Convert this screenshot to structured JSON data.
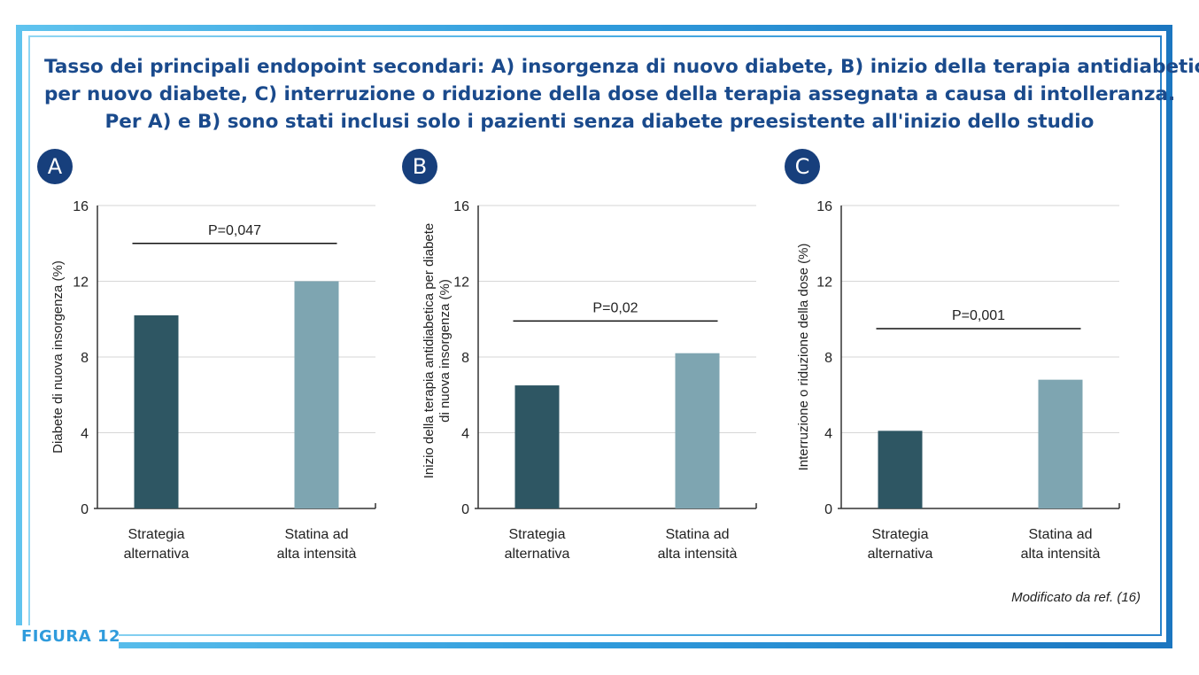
{
  "figure_label": "FIGURA 12",
  "title_lines": [
    "Tasso dei principali endopoint secondari: A) insorgenza di nuovo diabete, B) inizio della terapia antidiabetica",
    "per nuovo diabete, C) interruzione o riduzione della dose della terapia assegnata a causa di intolleranza.",
    "Per A) e B) sono stati inclusi solo i pazienti senza diabete preesistente all'inizio dello studio"
  ],
  "credit": "Modificato da ref. (16)",
  "colors": {
    "series_1": "#2e5663",
    "series_2": "#7ea5b1",
    "title": "#1a4a8c",
    "badge": "#173f7c",
    "frame": "#2f9bdc"
  },
  "chart_data": [
    {
      "panel": "A",
      "type": "bar",
      "categories": [
        "Strategia alternativa",
        "Statina ad alta intensità"
      ],
      "category_lines": [
        [
          "Strategia",
          "alternativa"
        ],
        [
          "Statina ad",
          "alta intensità"
        ]
      ],
      "values": [
        10.2,
        12.0
      ],
      "ylabel_lines": [
        "Diabete di nuova insorgenza (%)"
      ],
      "ylim": [
        0,
        16
      ],
      "yticks": [
        0,
        4,
        8,
        12,
        16
      ],
      "annotation": "P=0,047",
      "annotation_y": 14.0,
      "grid": true
    },
    {
      "panel": "B",
      "type": "bar",
      "categories": [
        "Strategia alternativa",
        "Statina ad alta intensità"
      ],
      "category_lines": [
        [
          "Strategia",
          "alternativa"
        ],
        [
          "Statina ad",
          "alta intensità"
        ]
      ],
      "values": [
        6.5,
        8.2
      ],
      "ylabel_lines": [
        "Inizio della terapia antidiabetica per diabete",
        "di nuova insorgenza (%)"
      ],
      "ylim": [
        0,
        16
      ],
      "yticks": [
        0,
        4,
        8,
        12,
        16
      ],
      "annotation": "P=0,02",
      "annotation_y": 9.9,
      "grid": true
    },
    {
      "panel": "C",
      "type": "bar",
      "categories": [
        "Strategia alternativa",
        "Statina ad alta intensità"
      ],
      "category_lines": [
        [
          "Strategia",
          "alternativa"
        ],
        [
          "Statina ad",
          "alta intensità"
        ]
      ],
      "values": [
        4.1,
        6.8
      ],
      "ylabel_lines": [
        "Interruzione o riduzione della dose (%)"
      ],
      "ylim": [
        0,
        16
      ],
      "yticks": [
        0,
        4,
        8,
        12,
        16
      ],
      "annotation": "P=0,001",
      "annotation_y": 9.5,
      "grid": true
    }
  ]
}
